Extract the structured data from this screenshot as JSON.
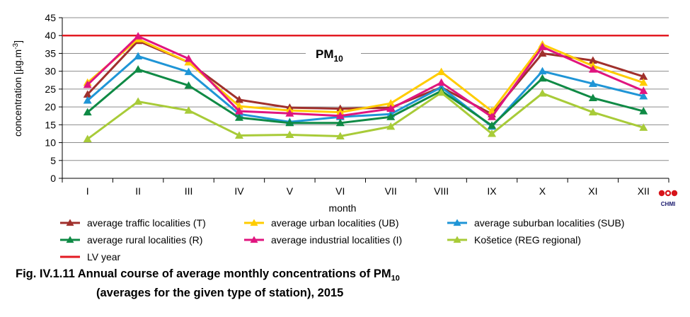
{
  "chart_data": {
    "type": "line",
    "title": "PM",
    "title_sub": "10",
    "xlabel": "month",
    "ylabel": "concentration [µg.m-3]",
    "ylabel_main": "concentration [µg.m",
    "ylabel_sup": "-3",
    "ylabel_end": "]",
    "ylim": [
      0,
      45
    ],
    "yticks": [
      0,
      5,
      10,
      15,
      20,
      25,
      30,
      35,
      40,
      45
    ],
    "grid": true,
    "legend_position": "bottom",
    "categories": [
      "I",
      "II",
      "III",
      "IV",
      "V",
      "VI",
      "VII",
      "VIII",
      "IX",
      "X",
      "XI",
      "XII"
    ],
    "series": [
      {
        "name": "average traffic localities (T)",
        "color": "#a0302c",
        "values": [
          23.5,
          38.5,
          32.5,
          22,
          19.8,
          19.5,
          19.8,
          25.5,
          18,
          35,
          33,
          28.5
        ]
      },
      {
        "name": "average urban localities (UB)",
        "color": "#ffcc00",
        "values": [
          26.8,
          39,
          32.5,
          20.2,
          19,
          18.5,
          21,
          29.8,
          18.8,
          37.5,
          31.5,
          26.8
        ]
      },
      {
        "name": "average suburban localities (SUB)",
        "color": "#1f95d6",
        "values": [
          21.8,
          34.2,
          29.8,
          18,
          15.8,
          17.2,
          18,
          25.5,
          14.5,
          30,
          26.5,
          23
        ]
      },
      {
        "name": "average rural localities (R)",
        "color": "#0f8a45",
        "values": [
          18.5,
          30.5,
          26,
          17,
          15.5,
          15.5,
          17.2,
          24.5,
          14.8,
          28,
          22.5,
          18.8
        ]
      },
      {
        "name": "average industrial localities (I)",
        "color": "#e0157f",
        "values": [
          26.2,
          39.8,
          33.5,
          18.8,
          18.2,
          17.5,
          19.5,
          26.8,
          17.2,
          36.8,
          30.5,
          24.5
        ]
      },
      {
        "name": "Košetice (REG regional)",
        "color": "#a8cb38",
        "values": [
          11,
          21.5,
          19,
          12,
          12.2,
          11.8,
          14.5,
          24,
          12.5,
          23.8,
          18.5,
          14.2
        ]
      }
    ],
    "limit_line": {
      "name": "LV year",
      "value": 40,
      "color": "#e31b23"
    }
  },
  "logo": {
    "text": "CHMI"
  },
  "caption": {
    "line1": "Fig. IV.1.11  Annual course of average monthly concentrations of PM",
    "line1_sub": "10",
    "line2": "(averages for the given type of station), 2015"
  }
}
